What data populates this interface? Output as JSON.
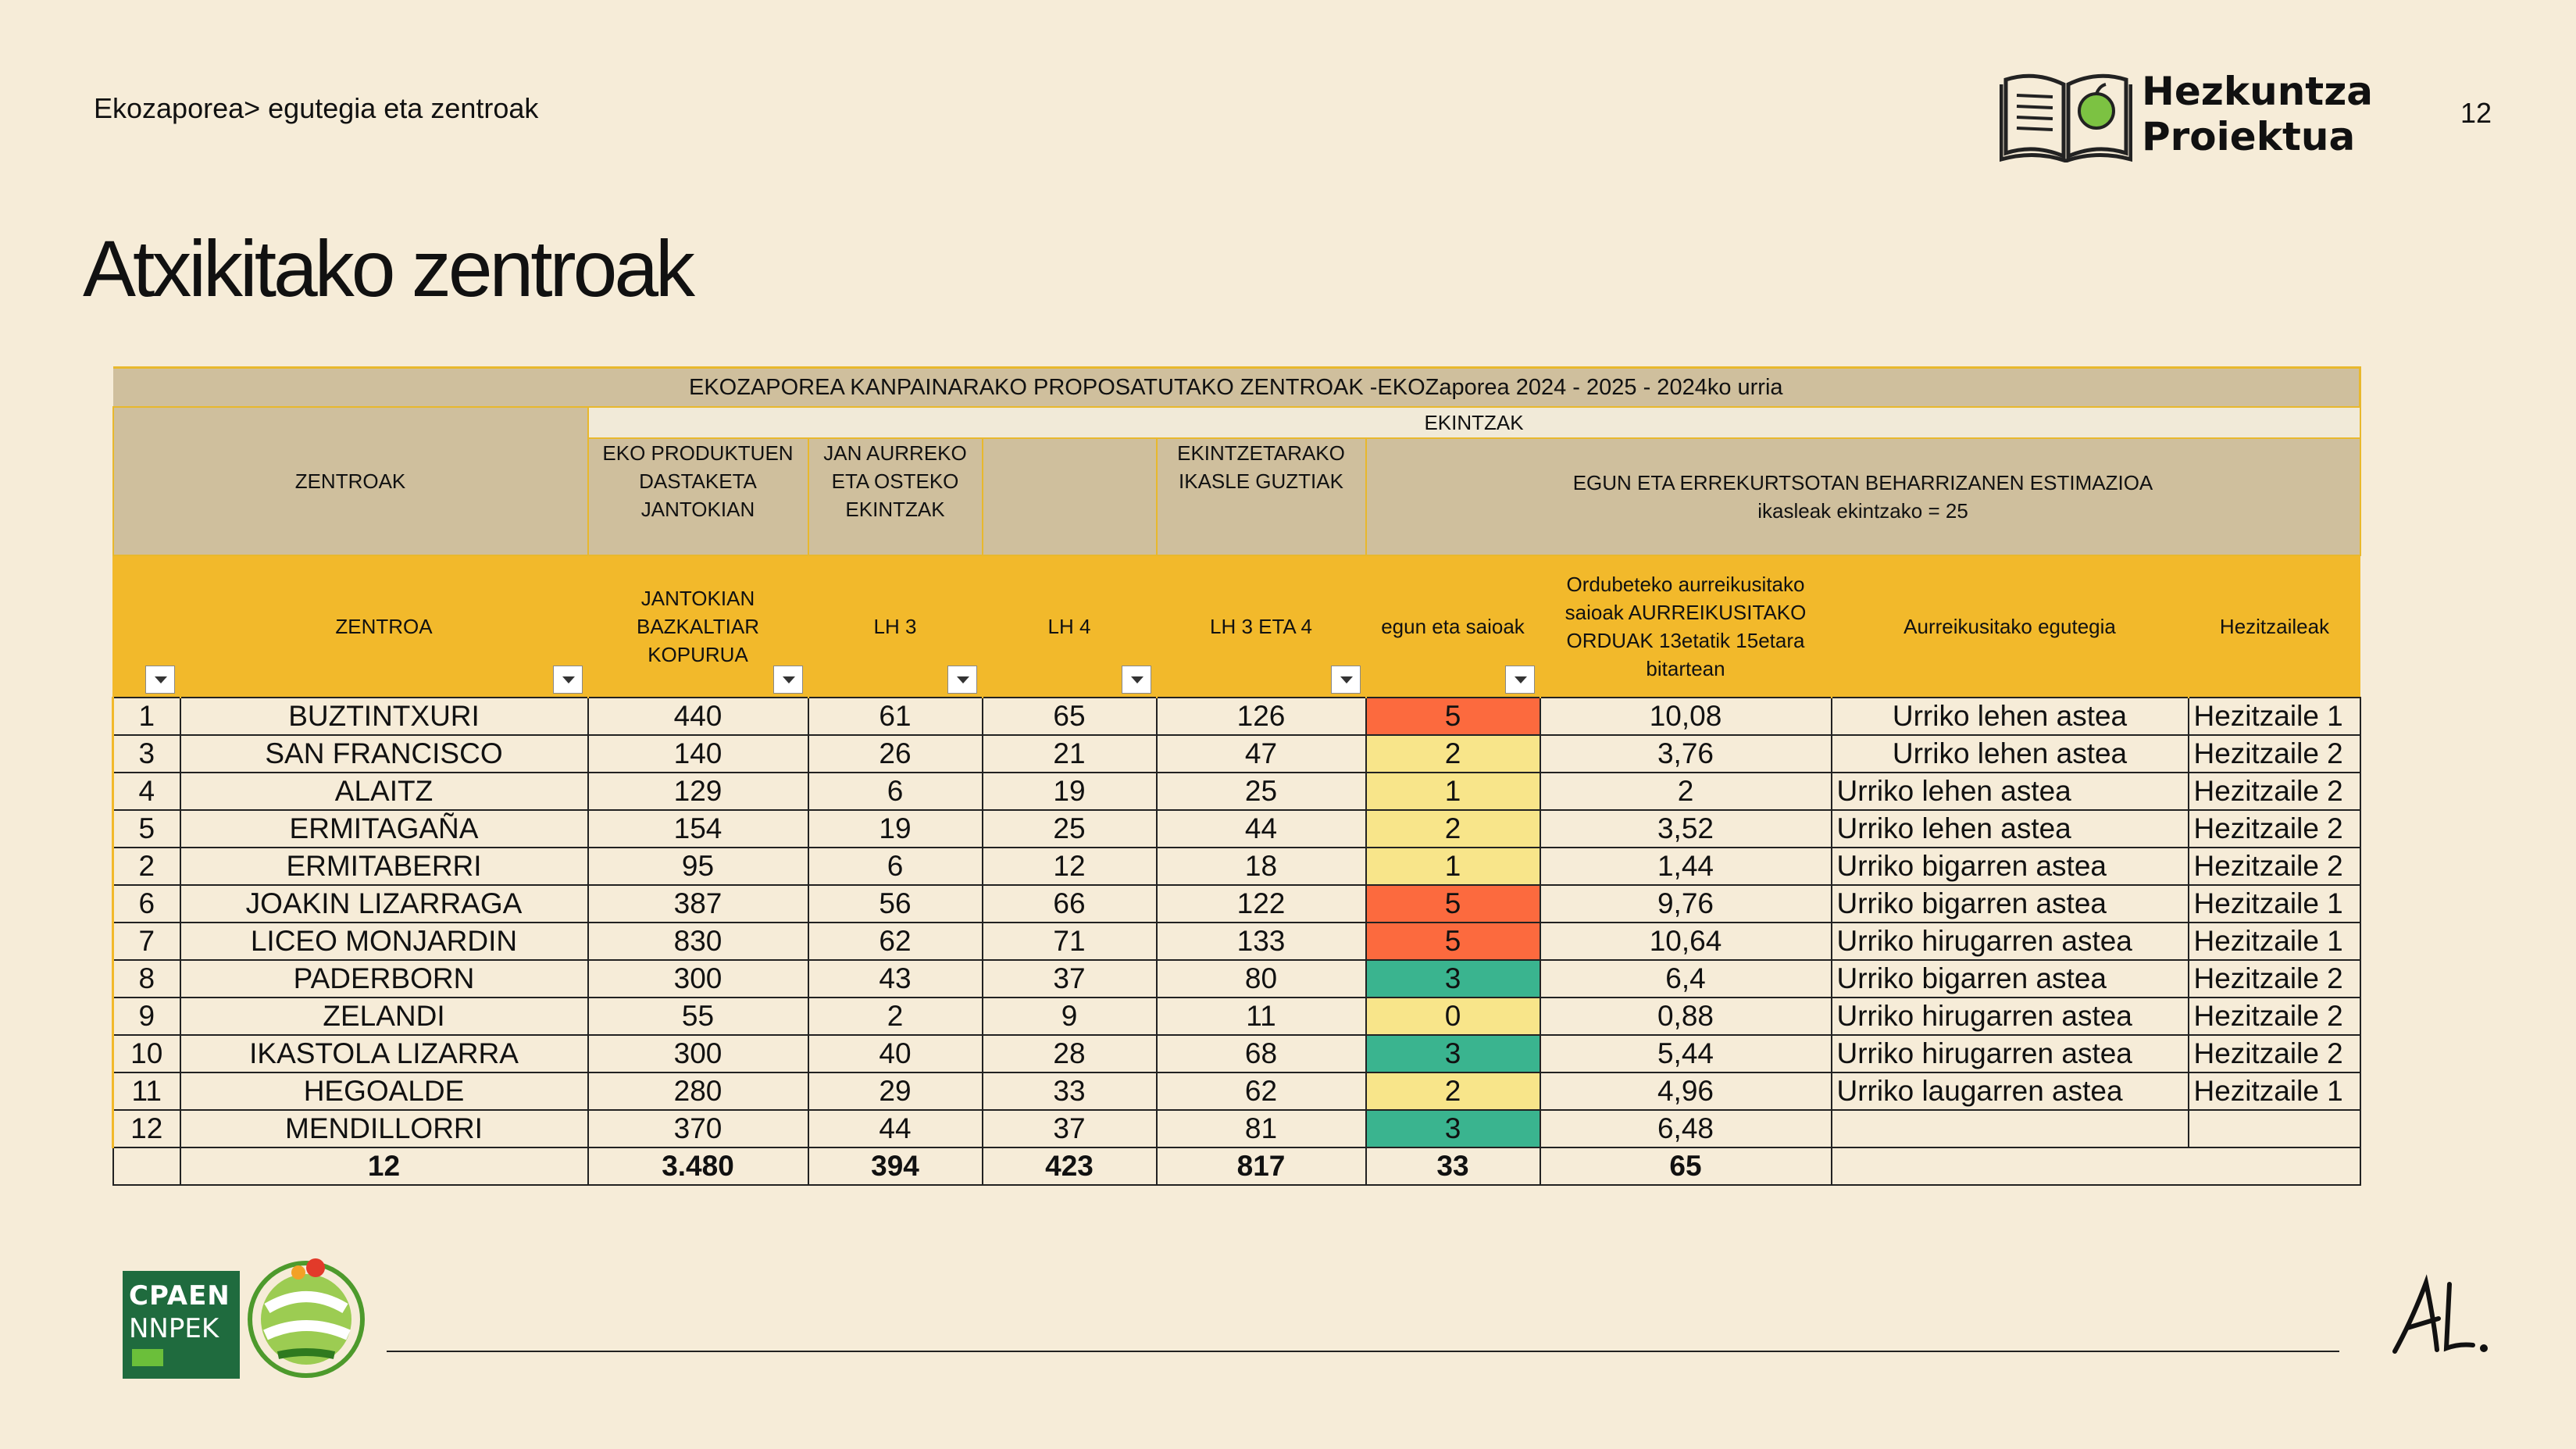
{
  "header": {
    "breadcrumb": "Ekozaporea> egutegia eta zentroak",
    "brand_line1": "Hezkuntza",
    "brand_line2": "Proiektua",
    "page_number": "12"
  },
  "title": "Atxikitako zentroak",
  "table": {
    "banner": "EKOZAPOREA KANPAINARAKO PROPOSATUTAKO ZENTROAK -EKOZaporea 2024 - 2025 -  2024ko urria",
    "ekintzak": "EKINTZAK",
    "group_headers": {
      "zentroak": "ZENTROAK",
      "eko_produktuen": "EKO PRODUKTUEN DASTAKETA JANTOKIAN",
      "jan_aurreko": "JAN AURREKO ETA OSTEKO EKINTZAK",
      "ekintzetarako": "EKINTZETARAKO IKASLE GUZTIAK",
      "estimazioa": "EGUN ETA ERREKURTSOTAN BEHARRIZANEN ESTIMAZIOA",
      "estimazioa_sub": "ikasleak ekintzako = 25"
    },
    "columns": {
      "zentroa": "ZENTROA",
      "jantokian": "JANTOKIAN BAZKALTIAR KOPURUA",
      "lh3": "LH 3",
      "lh4": "LH 4",
      "lh34": "LH 3 ETA 4",
      "egun": "egun eta saioak",
      "ordubeteko": "Ordubeteko aurreikusitako saioak AURREIKUSITAKO ORDUAK 13etatik 15etara bitartean",
      "egutegia": "Aurreikusitako egutegia",
      "hezitzaileak": "Hezitzaileak"
    },
    "rows": [
      {
        "n": "1",
        "zentroa": "BUZTINTXURI",
        "jantokian": "440",
        "lh3": "61",
        "lh4": "65",
        "lh34": "126",
        "saioak": "5",
        "orduak": "10,08",
        "egutegia": "Urriko lehen astea",
        "hezitzailea": "Hezitzaile 1"
      },
      {
        "n": "3",
        "zentroa": "SAN FRANCISCO",
        "jantokian": "140",
        "lh3": "26",
        "lh4": "21",
        "lh34": "47",
        "saioak": "2",
        "orduak": "3,76",
        "egutegia": "Urriko lehen astea",
        "hezitzailea": "Hezitzaile 2"
      },
      {
        "n": "4",
        "zentroa": "ALAITZ",
        "jantokian": "129",
        "lh3": "6",
        "lh4": "19",
        "lh34": "25",
        "saioak": "1",
        "orduak": "2",
        "egutegia": "Urriko lehen astea",
        "hezitzailea": "Hezitzaile 2"
      },
      {
        "n": "5",
        "zentroa": "ERMITAGAÑA",
        "jantokian": "154",
        "lh3": "19",
        "lh4": "25",
        "lh34": "44",
        "saioak": "2",
        "orduak": "3,52",
        "egutegia": "Urriko lehen astea",
        "hezitzailea": "Hezitzaile 2"
      },
      {
        "n": "2",
        "zentroa": "ERMITABERRI",
        "jantokian": "95",
        "lh3": "6",
        "lh4": "12",
        "lh34": "18",
        "saioak": "1",
        "orduak": "1,44",
        "egutegia": "Urriko bigarren astea",
        "hezitzailea": "Hezitzaile 2"
      },
      {
        "n": "6",
        "zentroa": "JOAKIN LIZARRAGA",
        "jantokian": "387",
        "lh3": "56",
        "lh4": "66",
        "lh34": "122",
        "saioak": "5",
        "orduak": "9,76",
        "egutegia": "Urriko bigarren astea",
        "hezitzailea": "Hezitzaile 1"
      },
      {
        "n": "7",
        "zentroa": "LICEO MONJARDIN",
        "jantokian": "830",
        "lh3": "62",
        "lh4": "71",
        "lh34": "133",
        "saioak": "5",
        "orduak": "10,64",
        "egutegia": "Urriko hirugarren astea",
        "hezitzailea": "Hezitzaile 1"
      },
      {
        "n": "8",
        "zentroa": "PADERBORN",
        "jantokian": "300",
        "lh3": "43",
        "lh4": "37",
        "lh34": "80",
        "saioak": "3",
        "orduak": "6,4",
        "egutegia": "Urriko bigarren astea",
        "hezitzailea": "Hezitzaile 2"
      },
      {
        "n": "9",
        "zentroa": "ZELANDI",
        "jantokian": "55",
        "lh3": "2",
        "lh4": "9",
        "lh34": "11",
        "saioak": "0",
        "orduak": "0,88",
        "egutegia": "Urriko hirugarren astea",
        "hezitzailea": "Hezitzaile 2"
      },
      {
        "n": "10",
        "zentroa": "IKASTOLA LIZARRA",
        "jantokian": "300",
        "lh3": "40",
        "lh4": "28",
        "lh34": "68",
        "saioak": "3",
        "orduak": "5,44",
        "egutegia": "Urriko hirugarren astea",
        "hezitzailea": "Hezitzaile 2"
      },
      {
        "n": "11",
        "zentroa": "HEGOALDE",
        "jantokian": "280",
        "lh3": "29",
        "lh4": "33",
        "lh34": "62",
        "saioak": "2",
        "orduak": "4,96",
        "egutegia": "Urriko laugarren astea",
        "hezitzailea": "Hezitzaile 1"
      },
      {
        "n": "12",
        "zentroa": "MENDILLORRI",
        "jantokian": "370",
        "lh3": "44",
        "lh4": "37",
        "lh34": "81",
        "saioak": "3",
        "orduak": "6,48",
        "egutegia": "",
        "hezitzailea": ""
      }
    ],
    "totals": {
      "zentroa": "12",
      "jantokian": "3.480",
      "lh3": "394",
      "lh4": "423",
      "lh34": "817",
      "saioak": "33",
      "orduak": "65"
    }
  },
  "footer": {
    "cpaen_line1": "CPAEN",
    "cpaen_line2": "NNPEK"
  }
}
